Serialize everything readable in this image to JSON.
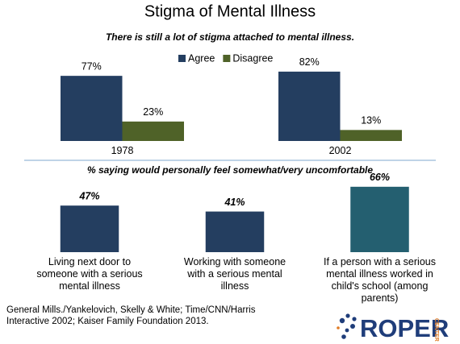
{
  "title": "Stigma of Mental Illness",
  "chart_data": [
    {
      "type": "bar",
      "subtitle": "There is still a lot of stigma attached to mental illness.",
      "categories": [
        "1978",
        "2002"
      ],
      "series": [
        {
          "name": "Agree",
          "color": "#243e60",
          "values": [
            77,
            82
          ],
          "value_labels": [
            "77%",
            "82%"
          ]
        },
        {
          "name": "Disagree",
          "color": "#4f6228",
          "values": [
            23,
            13
          ],
          "value_labels": [
            "23%",
            "13%"
          ]
        }
      ]
    },
    {
      "type": "bar",
      "subtitle": "% saying would personally feel somewhat/very uncomfortable",
      "categories": [
        "Living next door to someone with a serious mental illness",
        "Working with someone with a serious mental illness",
        "If a person with a serious mental illness worked in child's school (among parents)"
      ],
      "values": [
        47,
        41,
        66
      ],
      "value_labels": [
        "47%",
        "41%",
        "66%"
      ],
      "colors": [
        "#243e60",
        "#243e60",
        "#245f70"
      ]
    }
  ],
  "source": "General Mills./Yankelovich, Skelly & White; Time/CNN/Harris Interactive 2002; Kaiser Family Foundation 2013.",
  "logo": {
    "name": "ROPER",
    "sub": "CENTER"
  }
}
